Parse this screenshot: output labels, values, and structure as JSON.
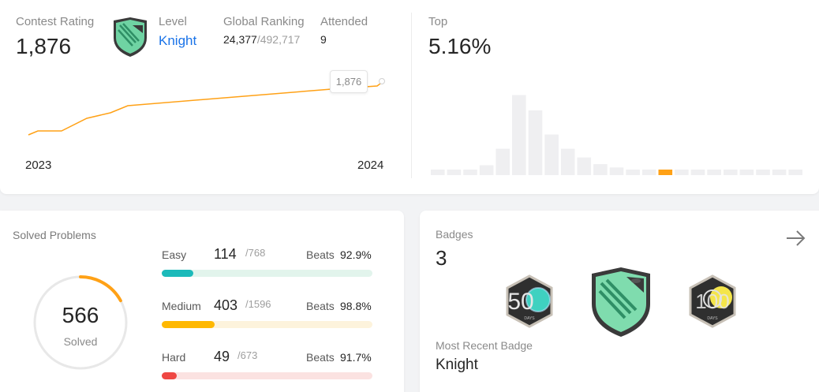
{
  "contest": {
    "rating_label": "Contest Rating",
    "rating_value": "1,876",
    "level_label": "Level",
    "level_value": "Knight",
    "ranking_label": "Global Ranking",
    "ranking_value": "24,377",
    "ranking_total": "/492,717",
    "attended_label": "Attended",
    "attended_value": "9",
    "tooltip_value": "1,876",
    "year_start": "2023",
    "year_end": "2024",
    "top_label": "Top",
    "top_value": "5.16%",
    "accent_color": "#ffa116",
    "histogram": [
      0.05,
      0.05,
      0.05,
      0.09,
      0.24,
      0.73,
      0.59,
      0.37,
      0.24,
      0.16,
      0.1,
      0.07,
      0.05,
      0.05,
      0.05,
      0.05,
      0.05,
      0.05,
      0.05,
      0.05,
      0.05,
      0.05,
      0.05
    ],
    "histogram_highlight_index": 14
  },
  "solved": {
    "title": "Solved Problems",
    "total": "566",
    "total_label": "Solved",
    "ring_fraction": 0.17,
    "rows": [
      {
        "name": "Easy",
        "count": "114",
        "total": "/768",
        "beats_label": "Beats",
        "beats": "92.9%",
        "fraction": 0.148,
        "color": "#1cbaba",
        "track": "#e2f4ec"
      },
      {
        "name": "Medium",
        "count": "403",
        "total": "/1596",
        "beats_label": "Beats",
        "beats": "98.8%",
        "fraction": 0.252,
        "color": "#ffb800",
        "track": "#fdf3dc"
      },
      {
        "name": "Hard",
        "count": "49",
        "total": "/673",
        "beats_label": "Beats",
        "beats": "91.7%",
        "fraction": 0.073,
        "color": "#ef4743",
        "track": "#fbe2e1"
      }
    ]
  },
  "badges": {
    "title": "Badges",
    "count": "3",
    "badge1_text": "50",
    "badge1_sub": "DAYS",
    "badge3_text": "100",
    "badge3_sub": "DAYS",
    "recent_label": "Most Recent Badge",
    "recent_value": "Knight"
  }
}
